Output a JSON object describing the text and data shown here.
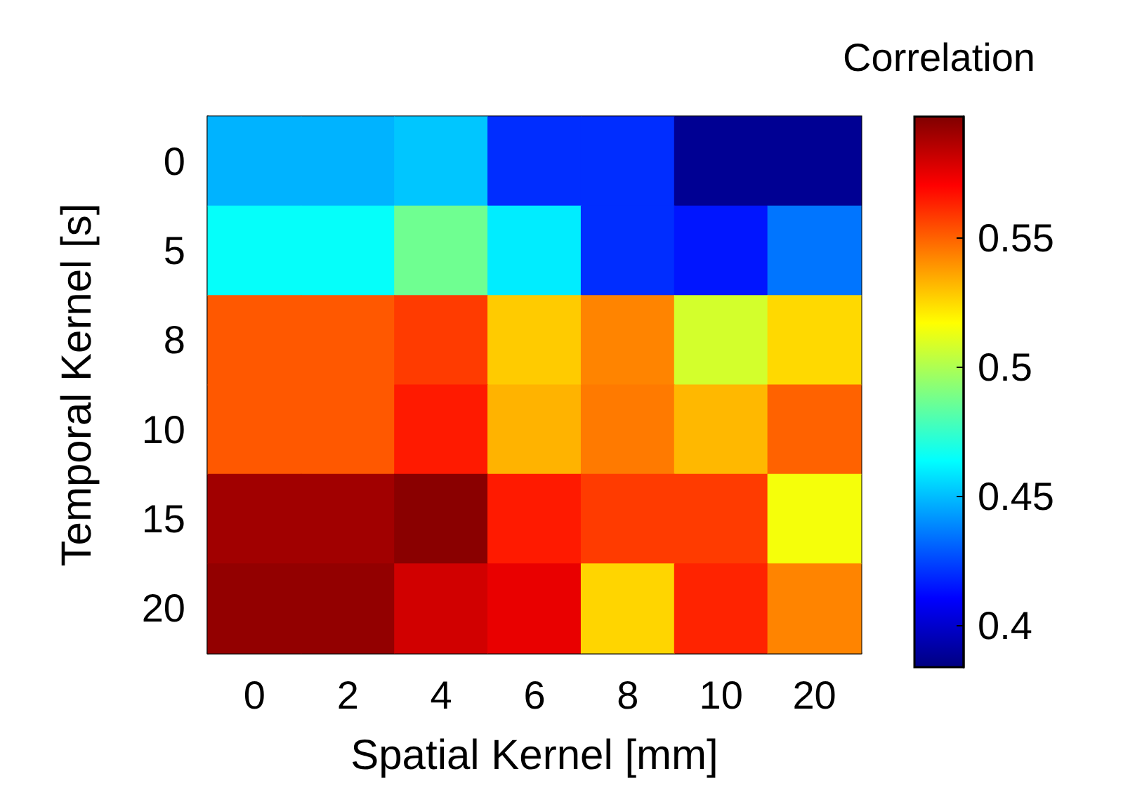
{
  "chart_data": {
    "type": "heatmap",
    "xlabel": "Spatial Kernel [mm]",
    "ylabel": "Temporal Kernel [s]",
    "clabel": "Correlation",
    "categories": [
      "0",
      "2",
      "4",
      "6",
      "8",
      "10",
      "20"
    ],
    "y_categories": [
      "0",
      "5",
      "8",
      "10",
      "15",
      "20"
    ],
    "cells": [
      [
        0.448,
        0.448,
        0.452,
        0.42,
        0.42,
        0.388,
        0.388
      ],
      [
        0.465,
        0.465,
        0.487,
        0.46,
        0.42,
        0.415,
        0.435
      ],
      [
        0.552,
        0.552,
        0.558,
        0.528,
        0.543,
        0.508,
        0.525
      ],
      [
        0.552,
        0.552,
        0.565,
        0.533,
        0.545,
        0.532,
        0.55
      ],
      [
        0.59,
        0.59,
        0.595,
        0.565,
        0.558,
        0.558,
        0.515
      ],
      [
        0.593,
        0.593,
        0.58,
        0.575,
        0.526,
        0.563,
        0.543
      ]
    ],
    "clim": [
      0.384,
      0.597
    ],
    "cticks": [
      0.4,
      0.45,
      0.5,
      0.55
    ]
  }
}
